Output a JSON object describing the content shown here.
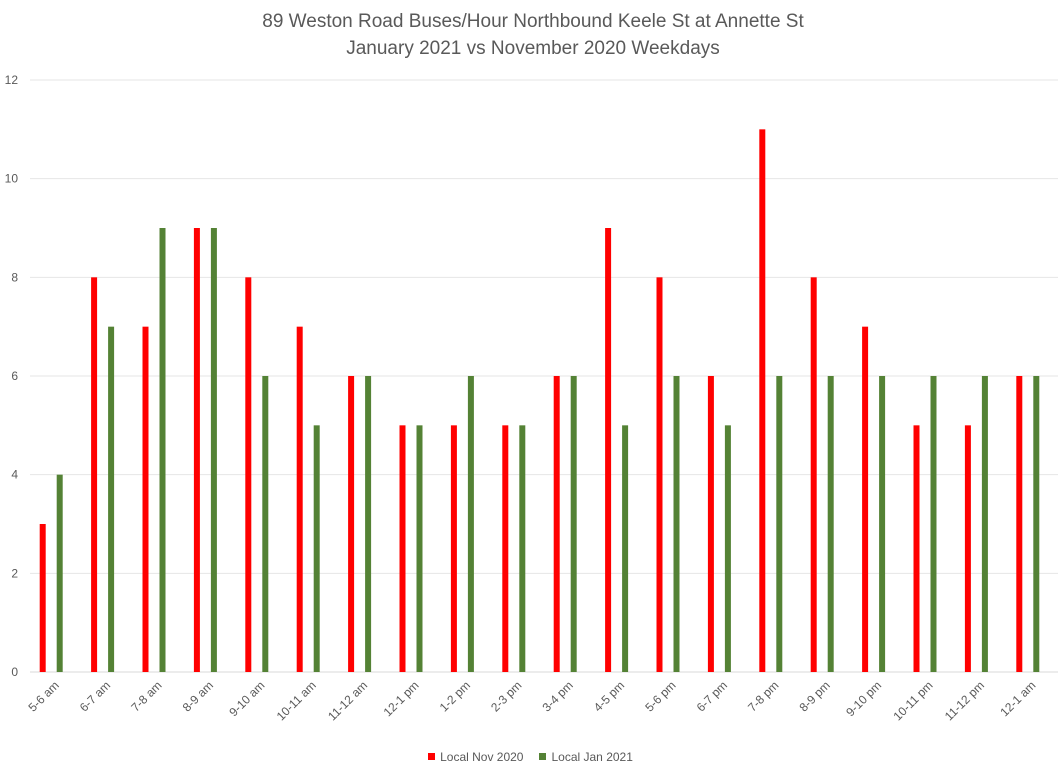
{
  "chart_data": {
    "type": "bar",
    "title": [
      "89 Weston Road Buses/Hour Northbound Keele St at Annette St",
      "January 2021 vs November 2020 Weekdays"
    ],
    "categories": [
      "5-6 am",
      "6-7 am",
      "7-8 am",
      "8-9 am",
      "9-10 am",
      "10-11 am",
      "11-12 am",
      "12-1 pm",
      "1-2 pm",
      "2-3 pm",
      "3-4 pm",
      "4-5 pm",
      "5-6 pm",
      "6-7 pm",
      "7-8 pm",
      "8-9 pm",
      "9-10 pm",
      "10-11 pm",
      "11-12 pm",
      "12-1 am"
    ],
    "series": [
      {
        "name": "Local Nov 2020",
        "color": "#ff0000",
        "values": [
          3,
          8,
          7,
          9,
          8,
          7,
          6,
          5,
          5,
          5,
          6,
          9,
          8,
          6,
          11,
          8,
          7,
          5,
          5,
          6
        ]
      },
      {
        "name": "Local Jan 2021",
        "color": "#548235",
        "values": [
          4,
          7,
          9,
          9,
          6,
          5,
          6,
          5,
          6,
          5,
          6,
          5,
          6,
          5,
          6,
          6,
          6,
          6,
          6,
          6
        ]
      }
    ],
    "yticks": [
      "0",
      "2",
      "4",
      "6",
      "8",
      "10",
      "12"
    ],
    "ylim": [
      0,
      12
    ],
    "grid": true,
    "legend_position": "bottom"
  }
}
